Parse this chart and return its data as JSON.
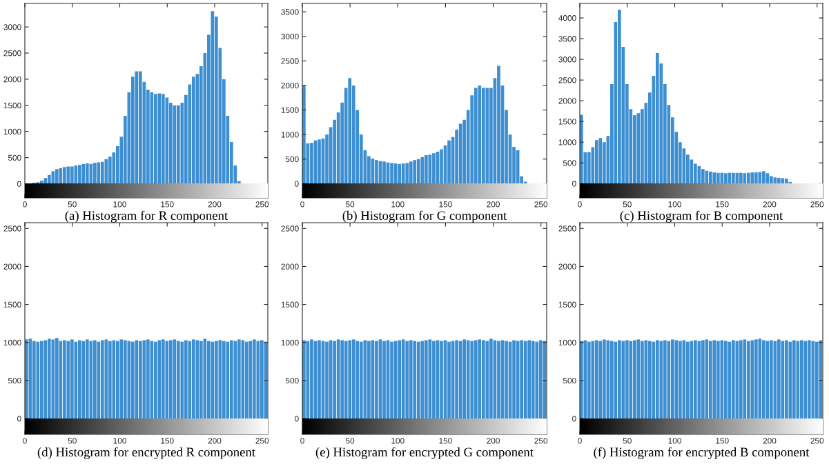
{
  "chart_data": [
    {
      "type": "histogram",
      "xlabel": "(a) Histogram for R component",
      "color": "#3d8fd1",
      "bins": [
        0,
        4,
        8,
        12,
        16,
        20,
        24,
        28,
        32,
        36,
        40,
        44,
        48,
        52,
        56,
        60,
        64,
        68,
        72,
        76,
        80,
        84,
        88,
        92,
        96,
        100,
        104,
        108,
        112,
        116,
        120,
        124,
        128,
        132,
        136,
        140,
        144,
        148,
        152,
        156,
        160,
        164,
        168,
        172,
        176,
        180,
        184,
        188,
        192,
        196,
        200,
        204,
        208,
        212,
        216,
        220,
        224,
        228,
        232,
        236,
        240,
        244,
        248,
        252,
        256
      ],
      "values": [
        0,
        0,
        20,
        30,
        60,
        110,
        170,
        240,
        280,
        300,
        320,
        330,
        330,
        350,
        360,
        380,
        390,
        380,
        400,
        410,
        420,
        470,
        520,
        600,
        720,
        900,
        1300,
        1750,
        2050,
        2150,
        2150,
        1950,
        1800,
        1750,
        1720,
        1730,
        1720,
        1650,
        1550,
        1500,
        1500,
        1550,
        1700,
        1900,
        2050,
        2100,
        2250,
        2500,
        2850,
        3300,
        3200,
        2600,
        2000,
        1300,
        800,
        350,
        50,
        0,
        0,
        0,
        0,
        0,
        0,
        0
      ],
      "xlim": [
        0,
        256
      ],
      "ylim": [
        -270,
        3450
      ],
      "xticks": [
        0,
        50,
        100,
        150,
        200,
        250
      ],
      "yticks": [
        0,
        500,
        1000,
        1500,
        2000,
        2500,
        3000
      ],
      "grid": false
    },
    {
      "type": "histogram",
      "xlabel": "(b) Histogram for G component",
      "color": "#3d8fd1",
      "bins": [
        0,
        4,
        8,
        12,
        16,
        20,
        24,
        28,
        32,
        36,
        40,
        44,
        48,
        52,
        56,
        60,
        64,
        68,
        72,
        76,
        80,
        84,
        88,
        92,
        96,
        100,
        104,
        108,
        112,
        116,
        120,
        124,
        128,
        132,
        136,
        140,
        144,
        148,
        152,
        156,
        160,
        164,
        168,
        172,
        176,
        180,
        184,
        188,
        192,
        196,
        200,
        204,
        208,
        212,
        216,
        220,
        224,
        228,
        232,
        236,
        240,
        244,
        248,
        252,
        256
      ],
      "values": [
        2000,
        820,
        830,
        880,
        900,
        920,
        1000,
        1150,
        1300,
        1450,
        1650,
        1950,
        2150,
        2000,
        1500,
        1000,
        680,
        560,
        510,
        480,
        460,
        450,
        430,
        420,
        410,
        400,
        410,
        420,
        450,
        480,
        500,
        540,
        580,
        590,
        620,
        650,
        700,
        780,
        880,
        950,
        1100,
        1220,
        1300,
        1500,
        1800,
        1950,
        2000,
        1950,
        1950,
        1950,
        2150,
        2400,
        2000,
        1500,
        1000,
        750,
        680,
        150,
        40,
        0,
        0,
        0,
        0,
        0
      ],
      "xlim": [
        0,
        256
      ],
      "ylim": [
        -290,
        3670
      ],
      "xticks": [
        0,
        50,
        100,
        150,
        200,
        250
      ],
      "yticks": [
        0,
        500,
        1000,
        1500,
        2000,
        2500,
        3000,
        3500
      ],
      "grid": false
    },
    {
      "type": "histogram",
      "xlabel": "(c) Histogram for B component",
      "color": "#3d8fd1",
      "bins": [
        0,
        4,
        8,
        12,
        16,
        20,
        24,
        28,
        32,
        36,
        40,
        44,
        48,
        52,
        56,
        60,
        64,
        68,
        72,
        76,
        80,
        84,
        88,
        92,
        96,
        100,
        104,
        108,
        112,
        116,
        120,
        124,
        128,
        132,
        136,
        140,
        144,
        148,
        152,
        156,
        160,
        164,
        168,
        172,
        176,
        180,
        184,
        188,
        192,
        196,
        200,
        204,
        208,
        212,
        216,
        220,
        224,
        228,
        232,
        236,
        240,
        244,
        248,
        252,
        256
      ],
      "values": [
        1660,
        760,
        760,
        880,
        1050,
        1100,
        1000,
        1150,
        2400,
        3900,
        4200,
        3300,
        2400,
        1800,
        1650,
        1700,
        1800,
        1950,
        2200,
        2600,
        3150,
        2900,
        2400,
        1900,
        1600,
        1250,
        1000,
        850,
        700,
        580,
        480,
        420,
        350,
        310,
        290,
        270,
        260,
        260,
        250,
        260,
        260,
        260,
        260,
        250,
        260,
        270,
        270,
        280,
        300,
        250,
        180,
        150,
        140,
        130,
        120,
        40,
        0,
        0,
        0,
        0,
        0,
        0,
        0,
        0
      ],
      "xlim": [
        0,
        256
      ],
      "ylim": [
        -345,
        4350
      ],
      "xticks": [
        0,
        50,
        100,
        150,
        200,
        250
      ],
      "yticks": [
        0,
        500,
        1000,
        1500,
        2000,
        2500,
        3000,
        3500,
        4000
      ],
      "grid": false
    },
    {
      "type": "histogram",
      "xlabel": "(d) Histogram for encrypted R component",
      "color": "#3d8fd1",
      "bins": [
        0,
        4,
        8,
        12,
        16,
        20,
        24,
        28,
        32,
        36,
        40,
        44,
        48,
        52,
        56,
        60,
        64,
        68,
        72,
        76,
        80,
        84,
        88,
        92,
        96,
        100,
        104,
        108,
        112,
        116,
        120,
        124,
        128,
        132,
        136,
        140,
        144,
        148,
        152,
        156,
        160,
        164,
        168,
        172,
        176,
        180,
        184,
        188,
        192,
        196,
        200,
        204,
        208,
        212,
        216,
        220,
        224,
        228,
        232,
        236,
        240,
        244,
        248,
        252,
        256
      ],
      "values": [
        1040,
        1050,
        1020,
        1010,
        1020,
        1030,
        1050,
        1040,
        1060,
        1020,
        1030,
        1020,
        1040,
        1010,
        1030,
        1020,
        1040,
        1020,
        1030,
        1010,
        1030,
        1040,
        1020,
        1030,
        1020,
        1040,
        1030,
        1020,
        1010,
        1030,
        1020,
        1030,
        1040,
        1020,
        1010,
        1030,
        1040,
        1020,
        1030,
        1040,
        1020,
        1010,
        1030,
        1020,
        1040,
        1030,
        1020,
        1050,
        1020,
        1010,
        1020,
        1030,
        1020,
        1010,
        1030,
        1020,
        1040,
        1030,
        1010,
        1020,
        1040,
        1020,
        1030,
        1010
      ],
      "xlim": [
        0,
        256
      ],
      "ylim": [
        -208,
        2575
      ],
      "xticks": [
        0,
        50,
        100,
        150,
        200,
        250
      ],
      "yticks": [
        0,
        500,
        1000,
        1500,
        2000,
        2500
      ],
      "grid": false
    },
    {
      "type": "histogram",
      "xlabel": "(e) Histogram for encrypted G component",
      "color": "#3d8fd1",
      "bins": [
        0,
        4,
        8,
        12,
        16,
        20,
        24,
        28,
        32,
        36,
        40,
        44,
        48,
        52,
        56,
        60,
        64,
        68,
        72,
        76,
        80,
        84,
        88,
        92,
        96,
        100,
        104,
        108,
        112,
        116,
        120,
        124,
        128,
        132,
        136,
        140,
        144,
        148,
        152,
        156,
        160,
        164,
        168,
        172,
        176,
        180,
        184,
        188,
        192,
        196,
        200,
        204,
        208,
        212,
        216,
        220,
        224,
        228,
        232,
        236,
        240,
        244,
        248,
        252,
        256
      ],
      "values": [
        1030,
        1020,
        1040,
        1020,
        1030,
        1020,
        1010,
        1030,
        1020,
        1040,
        1030,
        1020,
        1030,
        1040,
        1020,
        1010,
        1030,
        1020,
        1030,
        1020,
        1040,
        1020,
        1030,
        1010,
        1020,
        1030,
        1040,
        1020,
        1030,
        1020,
        1010,
        1020,
        1030,
        1040,
        1020,
        1030,
        1020,
        1030,
        1010,
        1020,
        1030,
        1020,
        1040,
        1030,
        1020,
        1030,
        1040,
        1030,
        1020,
        1050,
        1030,
        1020,
        1030,
        1020,
        1010,
        1030,
        1020,
        1030,
        1020,
        1030,
        1020,
        1010,
        1030,
        1020
      ],
      "xlim": [
        0,
        256
      ],
      "ylim": [
        -208,
        2575
      ],
      "xticks": [
        0,
        50,
        100,
        150,
        200,
        250
      ],
      "yticks": [
        0,
        500,
        1000,
        1500,
        2000,
        2500
      ],
      "grid": false
    },
    {
      "type": "histogram",
      "xlabel": "(f) Histogram for encrypted B component",
      "color": "#3d8fd1",
      "bins": [
        0,
        4,
        8,
        12,
        16,
        20,
        24,
        28,
        32,
        36,
        40,
        44,
        48,
        52,
        56,
        60,
        64,
        68,
        72,
        76,
        80,
        84,
        88,
        92,
        96,
        100,
        104,
        108,
        112,
        116,
        120,
        124,
        128,
        132,
        136,
        140,
        144,
        148,
        152,
        156,
        160,
        164,
        168,
        172,
        176,
        180,
        184,
        188,
        192,
        196,
        200,
        204,
        208,
        212,
        216,
        220,
        224,
        228,
        232,
        236,
        240,
        244,
        248,
        252,
        256
      ],
      "values": [
        1020,
        1030,
        1010,
        1020,
        1030,
        1020,
        1040,
        1030,
        1020,
        1010,
        1030,
        1020,
        1030,
        1020,
        1030,
        1040,
        1020,
        1030,
        1020,
        1010,
        1030,
        1020,
        1030,
        1020,
        1040,
        1030,
        1020,
        1030,
        1010,
        1020,
        1030,
        1020,
        1030,
        1040,
        1020,
        1030,
        1020,
        1030,
        1020,
        1010,
        1030,
        1020,
        1030,
        1040,
        1020,
        1030,
        1040,
        1050,
        1030,
        1020,
        1030,
        1020,
        1040,
        1020,
        1030,
        1010,
        1030,
        1020,
        1030,
        1020,
        1030,
        1020,
        1010,
        1030
      ],
      "xlim": [
        0,
        256
      ],
      "ylim": [
        -208,
        2575
      ],
      "xticks": [
        0,
        50,
        100,
        150,
        200,
        250
      ],
      "yticks": [
        0,
        500,
        1000,
        1500,
        2000,
        2500
      ],
      "grid": false
    }
  ]
}
